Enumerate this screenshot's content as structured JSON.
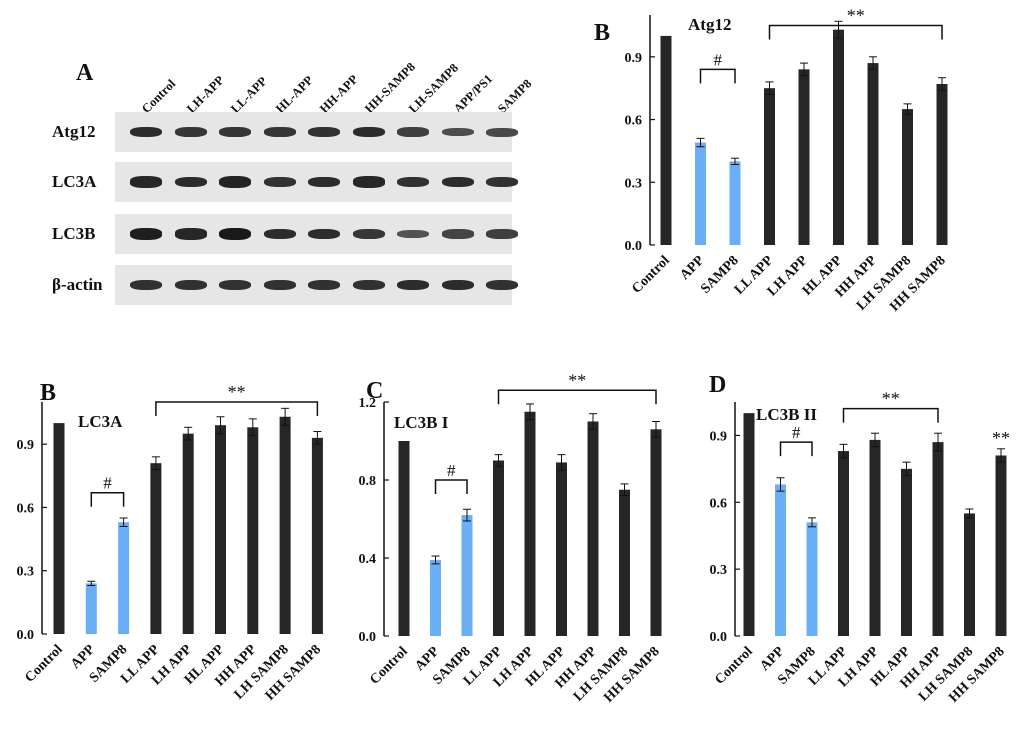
{
  "blot": {
    "panel_letter": "A",
    "lanes": [
      "Control",
      "LH-APP",
      "LL-APP",
      "HL-APP",
      "HH-APP",
      "HH-SAMP8",
      "LH-SAMP8",
      "APP/PS1",
      "SAMP8"
    ],
    "rows": [
      {
        "label": "Atg12",
        "intensity": [
          0.8,
          0.7,
          0.7,
          0.7,
          0.75,
          0.8,
          0.6,
          0.45,
          0.5
        ]
      },
      {
        "label": "LC3A",
        "intensity": [
          0.85,
          0.8,
          0.9,
          0.75,
          0.8,
          0.85,
          0.75,
          0.8,
          0.75
        ]
      },
      {
        "label": "LC3B",
        "intensity": [
          0.95,
          0.85,
          1.0,
          0.8,
          0.8,
          0.7,
          0.4,
          0.55,
          0.6
        ]
      },
      {
        "label": "β-actin",
        "intensity": [
          0.75,
          0.75,
          0.75,
          0.75,
          0.75,
          0.75,
          0.8,
          0.8,
          0.75
        ]
      }
    ]
  },
  "chart_data": [
    {
      "type": "bar",
      "panel_letter": "B",
      "title": "Atg12",
      "categories": [
        "Control",
        "APP",
        "SAMP8",
        "LL APP",
        "LH APP",
        "HL APP",
        "HH APP",
        "LH SAMP8",
        "HH SAMP8"
      ],
      "values": [
        1.0,
        0.49,
        0.4,
        0.75,
        0.84,
        1.03,
        0.87,
        0.65,
        0.77
      ],
      "errors": [
        0.0,
        0.02,
        0.015,
        0.03,
        0.03,
        0.04,
        0.03,
        0.025,
        0.03
      ],
      "bar_colors": [
        "#262626",
        "#6aaef5",
        "#6aaef5",
        "#262626",
        "#262626",
        "#262626",
        "#262626",
        "#262626",
        "#262626"
      ],
      "yticks": [
        "0.0",
        "0.3",
        "0.6",
        "0.9"
      ],
      "ylim": [
        0,
        1.1
      ],
      "ytick_values": [
        0,
        0.3,
        0.6,
        0.9
      ],
      "annotations": [
        {
          "type": "bracket",
          "text": "#",
          "from": 1,
          "to": 2,
          "level": 0.84
        },
        {
          "type": "bracket",
          "text": "**",
          "from": 3,
          "to": 8,
          "level": 1.05
        }
      ]
    },
    {
      "type": "bar",
      "panel_letter": "B",
      "title": "LC3A",
      "categories": [
        "Control",
        "APP",
        "SAMP8",
        "LL APP",
        "LH APP",
        "HL APP",
        "HH APP",
        "LH SAMP8",
        "HH SAMP8"
      ],
      "values": [
        1.0,
        0.24,
        0.53,
        0.81,
        0.95,
        0.99,
        0.98,
        1.03,
        0.93
      ],
      "errors": [
        0.0,
        0.01,
        0.02,
        0.03,
        0.03,
        0.04,
        0.04,
        0.04,
        0.03
      ],
      "bar_colors": [
        "#262626",
        "#6aaef5",
        "#6aaef5",
        "#262626",
        "#262626",
        "#262626",
        "#262626",
        "#262626",
        "#262626"
      ],
      "yticks": [
        "0.0",
        "0.3",
        "0.6",
        "0.9"
      ],
      "ylim": [
        0,
        1.1
      ],
      "ytick_values": [
        0,
        0.3,
        0.6,
        0.9
      ],
      "annotations": [
        {
          "type": "bracket",
          "text": "#",
          "from": 1,
          "to": 2,
          "level": 0.67
        },
        {
          "type": "bracket",
          "text": "**",
          "from": 3,
          "to": 8,
          "level": 1.1
        }
      ]
    },
    {
      "type": "bar",
      "panel_letter": "C",
      "title": "LC3B I",
      "categories": [
        "Control",
        "APP",
        "SAMP8",
        "LL APP",
        "LH APP",
        "HL APP",
        "HH APP",
        "LH SAMP8",
        "HH SAMP8"
      ],
      "values": [
        1.0,
        0.39,
        0.62,
        0.9,
        1.15,
        0.89,
        1.1,
        0.75,
        1.06
      ],
      "errors": [
        0.0,
        0.02,
        0.03,
        0.03,
        0.04,
        0.04,
        0.04,
        0.03,
        0.04
      ],
      "bar_colors": [
        "#262626",
        "#6aaef5",
        "#6aaef5",
        "#262626",
        "#262626",
        "#262626",
        "#262626",
        "#262626",
        "#262626"
      ],
      "yticks": [
        "0.0",
        "0.4",
        "0.8",
        "1.2"
      ],
      "ylim": [
        0,
        1.2
      ],
      "ytick_values": [
        0,
        0.4,
        0.8,
        1.2
      ],
      "annotations": [
        {
          "type": "bracket",
          "text": "#",
          "from": 1,
          "to": 2,
          "level": 0.8
        },
        {
          "type": "bracket",
          "text": "**",
          "from": 3,
          "to": 8,
          "level": 1.26
        }
      ]
    },
    {
      "type": "bar",
      "panel_letter": "D",
      "title": "LC3B II",
      "categories": [
        "Control",
        "APP",
        "SAMP8",
        "LL APP",
        "LH APP",
        "HL APP",
        "HH APP",
        "LH SAMP8",
        "HH SAMP8"
      ],
      "values": [
        1.0,
        0.68,
        0.51,
        0.83,
        0.88,
        0.75,
        0.87,
        0.55,
        0.81
      ],
      "errors": [
        0.0,
        0.03,
        0.02,
        0.03,
        0.03,
        0.03,
        0.04,
        0.02,
        0.03
      ],
      "bar_colors": [
        "#262626",
        "#6aaef5",
        "#6aaef5",
        "#262626",
        "#262626",
        "#262626",
        "#262626",
        "#262626",
        "#262626"
      ],
      "yticks": [
        "0.0",
        "0.3",
        "0.6",
        "0.9"
      ],
      "ylim": [
        0,
        1.05
      ],
      "ytick_values": [
        0,
        0.3,
        0.6,
        0.9
      ],
      "annotations": [
        {
          "type": "bracket",
          "text": "#",
          "from": 1,
          "to": 2,
          "level": 0.87
        },
        {
          "type": "bracket",
          "text": "**",
          "from": 3,
          "to": 6,
          "level": 1.02
        },
        {
          "type": "label",
          "text": "**",
          "at": 8,
          "level": 0.88
        }
      ]
    }
  ]
}
